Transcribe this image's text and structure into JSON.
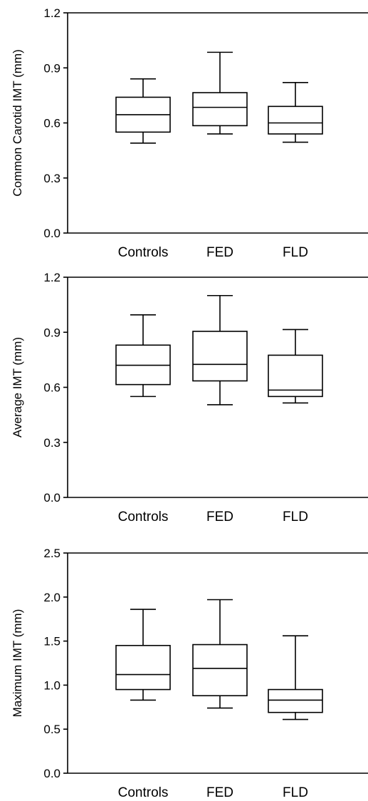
{
  "chart_data": [
    {
      "type": "box",
      "ylabel": "Common Carotid IMT (mm)",
      "categories": [
        "Controls",
        "FED",
        "FLD"
      ],
      "ylim": [
        0.0,
        1.2
      ],
      "yticks": [
        "0.0",
        "0.3",
        "0.6",
        "0.9",
        "1.2"
      ],
      "boxes": [
        {
          "category": "Controls",
          "whisker_low": 0.49,
          "q1": 0.55,
          "median": 0.645,
          "q3": 0.74,
          "whisker_high": 0.84
        },
        {
          "category": "FED",
          "whisker_low": 0.54,
          "q1": 0.585,
          "median": 0.685,
          "q3": 0.765,
          "whisker_high": 0.985
        },
        {
          "category": "FLD",
          "whisker_low": 0.495,
          "q1": 0.54,
          "median": 0.6,
          "q3": 0.69,
          "whisker_high": 0.82
        }
      ]
    },
    {
      "type": "box",
      "ylabel": "Average IMT (mm)",
      "categories": [
        "Controls",
        "FED",
        "FLD"
      ],
      "ylim": [
        0.0,
        1.2
      ],
      "yticks": [
        "0.0",
        "0.3",
        "0.6",
        "0.9",
        "1.2"
      ],
      "boxes": [
        {
          "category": "Controls",
          "whisker_low": 0.55,
          "q1": 0.615,
          "median": 0.72,
          "q3": 0.83,
          "whisker_high": 0.995
        },
        {
          "category": "FED",
          "whisker_low": 0.505,
          "q1": 0.635,
          "median": 0.725,
          "q3": 0.905,
          "whisker_high": 1.1
        },
        {
          "category": "FLD",
          "whisker_low": 0.515,
          "q1": 0.55,
          "median": 0.585,
          "q3": 0.775,
          "whisker_high": 0.915
        }
      ]
    },
    {
      "type": "box",
      "ylabel": "Maximum IMT (mm)",
      "categories": [
        "Controls",
        "FED",
        "FLD"
      ],
      "ylim": [
        0.0,
        2.5
      ],
      "yticks": [
        "0.0",
        "0.5",
        "1.0",
        "1.5",
        "2.0",
        "2.5"
      ],
      "boxes": [
        {
          "category": "Controls",
          "whisker_low": 0.83,
          "q1": 0.95,
          "median": 1.12,
          "q3": 1.45,
          "whisker_high": 1.86
        },
        {
          "category": "FED",
          "whisker_low": 0.74,
          "q1": 0.88,
          "median": 1.19,
          "q3": 1.46,
          "whisker_high": 1.97
        },
        {
          "category": "FLD",
          "whisker_low": 0.61,
          "q1": 0.69,
          "median": 0.83,
          "q3": 0.95,
          "whisker_high": 1.56
        }
      ]
    }
  ]
}
